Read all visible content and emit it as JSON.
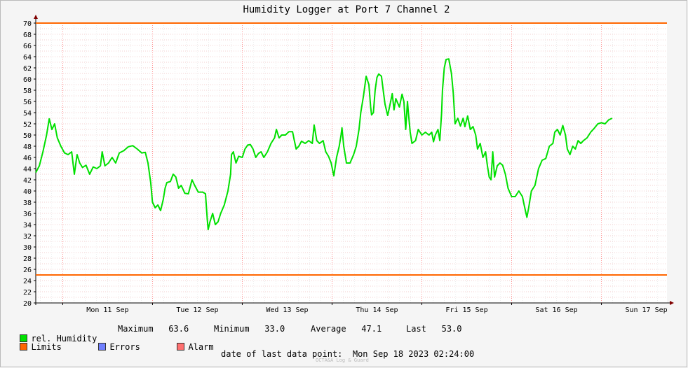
{
  "chart_data": {
    "type": "line",
    "title": "Humidity Logger at Port 7 Channel 2",
    "ylim": [
      20,
      70
    ],
    "yticks": [
      20,
      22,
      24,
      26,
      28,
      30,
      32,
      34,
      36,
      38,
      40,
      42,
      44,
      46,
      48,
      50,
      52,
      54,
      56,
      58,
      60,
      62,
      64,
      66,
      68,
      70
    ],
    "xlim": [
      -0.3,
      6.73
    ],
    "x_tick_labels": [
      "Mon 11 Sep",
      "Tue 12 Sep",
      "Wed 13 Sep",
      "Thu 14 Sep",
      "Fri 15 Sep",
      "Sat 16 Sep",
      "Sun 17 Sep"
    ],
    "grid": true,
    "limits": [
      {
        "name": "upper",
        "value": 70,
        "color": "#ff6600"
      },
      {
        "name": "lower",
        "value": 25,
        "color": "#ff6600"
      }
    ],
    "series": [
      {
        "name": "rel. Humidity",
        "color": "#00e000",
        "points": [
          [
            -0.3,
            43.3
          ],
          [
            -0.26,
            44.5
          ],
          [
            -0.22,
            47.0
          ],
          [
            -0.18,
            50.0
          ],
          [
            -0.15,
            52.9
          ],
          [
            -0.12,
            51.0
          ],
          [
            -0.09,
            52.0
          ],
          [
            -0.06,
            49.5
          ],
          [
            -0.02,
            48.0
          ],
          [
            0.02,
            46.8
          ],
          [
            0.06,
            46.5
          ],
          [
            0.1,
            47.0
          ],
          [
            0.13,
            43.0
          ],
          [
            0.16,
            46.5
          ],
          [
            0.19,
            45.0
          ],
          [
            0.22,
            44.2
          ],
          [
            0.26,
            44.6
          ],
          [
            0.3,
            43.0
          ],
          [
            0.34,
            44.3
          ],
          [
            0.38,
            44.0
          ],
          [
            0.42,
            44.5
          ],
          [
            0.44,
            47.0
          ],
          [
            0.47,
            44.5
          ],
          [
            0.51,
            45.0
          ],
          [
            0.55,
            46.0
          ],
          [
            0.59,
            45.0
          ],
          [
            0.63,
            46.8
          ],
          [
            0.68,
            47.2
          ],
          [
            0.73,
            47.9
          ],
          [
            0.78,
            48.1
          ],
          [
            0.83,
            47.5
          ],
          [
            0.88,
            46.8
          ],
          [
            0.92,
            46.9
          ],
          [
            0.95,
            45.0
          ],
          [
            0.98,
            41.5
          ],
          [
            1.0,
            38.0
          ],
          [
            1.03,
            37.0
          ],
          [
            1.06,
            37.5
          ],
          [
            1.09,
            36.5
          ],
          [
            1.12,
            38.5
          ],
          [
            1.14,
            40.5
          ],
          [
            1.16,
            41.5
          ],
          [
            1.2,
            41.7
          ],
          [
            1.23,
            43.0
          ],
          [
            1.26,
            42.5
          ],
          [
            1.29,
            40.5
          ],
          [
            1.32,
            41.0
          ],
          [
            1.36,
            39.6
          ],
          [
            1.4,
            39.5
          ],
          [
            1.44,
            42.0
          ],
          [
            1.47,
            41.0
          ],
          [
            1.51,
            39.8
          ],
          [
            1.56,
            39.8
          ],
          [
            1.59,
            39.5
          ],
          [
            1.61,
            35.0
          ],
          [
            1.62,
            33.1
          ],
          [
            1.64,
            34.5
          ],
          [
            1.67,
            36.0
          ],
          [
            1.7,
            34.0
          ],
          [
            1.73,
            34.5
          ],
          [
            1.76,
            36.0
          ],
          [
            1.8,
            37.5
          ],
          [
            1.84,
            40.0
          ],
          [
            1.87,
            43.0
          ],
          [
            1.88,
            46.5
          ],
          [
            1.9,
            47.0
          ],
          [
            1.93,
            45.0
          ],
          [
            1.96,
            46.2
          ],
          [
            2.0,
            46.0
          ],
          [
            2.03,
            47.5
          ],
          [
            2.06,
            48.2
          ],
          [
            2.09,
            48.3
          ],
          [
            2.12,
            47.5
          ],
          [
            2.15,
            46.0
          ],
          [
            2.18,
            46.7
          ],
          [
            2.21,
            47.0
          ],
          [
            2.24,
            46.0
          ],
          [
            2.28,
            47.0
          ],
          [
            2.32,
            48.5
          ],
          [
            2.36,
            49.5
          ],
          [
            2.38,
            51.0
          ],
          [
            2.41,
            49.5
          ],
          [
            2.44,
            50.0
          ],
          [
            2.48,
            50.0
          ],
          [
            2.52,
            50.6
          ],
          [
            2.56,
            50.6
          ],
          [
            2.58,
            49.0
          ],
          [
            2.6,
            47.5
          ],
          [
            2.63,
            48.0
          ],
          [
            2.66,
            48.9
          ],
          [
            2.7,
            48.5
          ],
          [
            2.74,
            49.0
          ],
          [
            2.78,
            48.5
          ],
          [
            2.8,
            51.8
          ],
          [
            2.83,
            49.0
          ],
          [
            2.86,
            48.5
          ],
          [
            2.9,
            49.0
          ],
          [
            2.93,
            47.0
          ],
          [
            2.96,
            46.2
          ],
          [
            2.99,
            45.0
          ],
          [
            3.02,
            42.7
          ],
          [
            3.05,
            46.0
          ],
          [
            3.08,
            48.0
          ],
          [
            3.1,
            50.0
          ],
          [
            3.11,
            51.3
          ],
          [
            3.13,
            48.0
          ],
          [
            3.16,
            45.0
          ],
          [
            3.2,
            45.0
          ],
          [
            3.24,
            46.5
          ],
          [
            3.27,
            48.0
          ],
          [
            3.3,
            51.0
          ],
          [
            3.32,
            54.0
          ],
          [
            3.35,
            57.0
          ],
          [
            3.38,
            60.5
          ],
          [
            3.41,
            59.0
          ],
          [
            3.43,
            55.0
          ],
          [
            3.44,
            53.6
          ],
          [
            3.46,
            54.0
          ],
          [
            3.48,
            58.0
          ],
          [
            3.5,
            60.3
          ],
          [
            3.52,
            60.9
          ],
          [
            3.55,
            60.5
          ],
          [
            3.57,
            58.0
          ],
          [
            3.59,
            55.5
          ],
          [
            3.62,
            53.5
          ],
          [
            3.64,
            55.0
          ],
          [
            3.67,
            57.4
          ],
          [
            3.69,
            54.5
          ],
          [
            3.71,
            56.5
          ],
          [
            3.75,
            55.0
          ],
          [
            3.78,
            57.3
          ],
          [
            3.8,
            56.0
          ],
          [
            3.82,
            51.0
          ],
          [
            3.84,
            56.0
          ],
          [
            3.85,
            54.0
          ],
          [
            3.87,
            50.5
          ],
          [
            3.89,
            48.5
          ],
          [
            3.93,
            49.0
          ],
          [
            3.96,
            51.0
          ],
          [
            4.0,
            50.0
          ],
          [
            4.04,
            50.5
          ],
          [
            4.08,
            50.0
          ],
          [
            4.11,
            50.5
          ],
          [
            4.13,
            48.8
          ],
          [
            4.15,
            50.0
          ],
          [
            4.18,
            51.0
          ],
          [
            4.2,
            49.0
          ],
          [
            4.22,
            54.0
          ],
          [
            4.23,
            58.0
          ],
          [
            4.25,
            62.0
          ],
          [
            4.27,
            63.5
          ],
          [
            4.3,
            63.6
          ],
          [
            4.33,
            61.0
          ],
          [
            4.35,
            57.5
          ],
          [
            4.37,
            52.0
          ],
          [
            4.4,
            53.0
          ],
          [
            4.43,
            51.6
          ],
          [
            4.46,
            53.0
          ],
          [
            4.48,
            51.5
          ],
          [
            4.51,
            53.4
          ],
          [
            4.54,
            51.0
          ],
          [
            4.57,
            51.5
          ],
          [
            4.6,
            50.0
          ],
          [
            4.62,
            47.5
          ],
          [
            4.65,
            48.5
          ],
          [
            4.68,
            46.0
          ],
          [
            4.71,
            47.0
          ],
          [
            4.73,
            44.5
          ],
          [
            4.75,
            42.5
          ],
          [
            4.77,
            42.0
          ],
          [
            4.79,
            47.0
          ],
          [
            4.81,
            42.5
          ],
          [
            4.84,
            44.5
          ],
          [
            4.87,
            45.0
          ],
          [
            4.9,
            44.6
          ],
          [
            4.93,
            43.0
          ],
          [
            4.96,
            40.5
          ],
          [
            5.0,
            39.0
          ],
          [
            5.04,
            39.0
          ],
          [
            5.08,
            40.0
          ],
          [
            5.12,
            39.0
          ],
          [
            5.14,
            37.5
          ],
          [
            5.16,
            36.0
          ],
          [
            5.17,
            35.3
          ],
          [
            5.19,
            37.0
          ],
          [
            5.22,
            40.0
          ],
          [
            5.26,
            41.0
          ],
          [
            5.3,
            44.0
          ],
          [
            5.34,
            45.5
          ],
          [
            5.38,
            45.8
          ],
          [
            5.42,
            48.0
          ],
          [
            5.46,
            48.5
          ],
          [
            5.48,
            50.5
          ],
          [
            5.51,
            51.0
          ],
          [
            5.54,
            50.0
          ],
          [
            5.57,
            51.7
          ],
          [
            5.6,
            50.0
          ],
          [
            5.62,
            47.5
          ],
          [
            5.65,
            46.5
          ],
          [
            5.68,
            48.0
          ],
          [
            5.71,
            47.5
          ],
          [
            5.74,
            49.0
          ],
          [
            5.77,
            48.5
          ],
          [
            5.8,
            49.0
          ],
          [
            5.84,
            49.5
          ],
          [
            5.88,
            50.5
          ],
          [
            5.92,
            51.2
          ],
          [
            5.96,
            52.0
          ],
          [
            6.0,
            52.2
          ],
          [
            6.04,
            52.0
          ],
          [
            6.08,
            52.7
          ],
          [
            6.12,
            53.0
          ]
        ]
      }
    ],
    "legend": {
      "series_label": "rel. Humidity",
      "limits_label": "Limits",
      "errors_label": "Errors",
      "alarm_label": "Alarm",
      "max_label": "Maximum",
      "max_value": "63.6",
      "min_label": "Minimum",
      "min_value": "33.0",
      "avg_label": "Average",
      "avg_value": "47.1",
      "last_label": "Last",
      "last_value": "53.0",
      "series_color": "#00e000",
      "limits_color": "#ff6600",
      "errors_color": "#7080ff",
      "alarm_color": "#ff7070"
    },
    "footer": "date of last data point:  Mon Sep 18 2023 02:24:00",
    "watermark": "OCTA&A Log & Guard"
  }
}
